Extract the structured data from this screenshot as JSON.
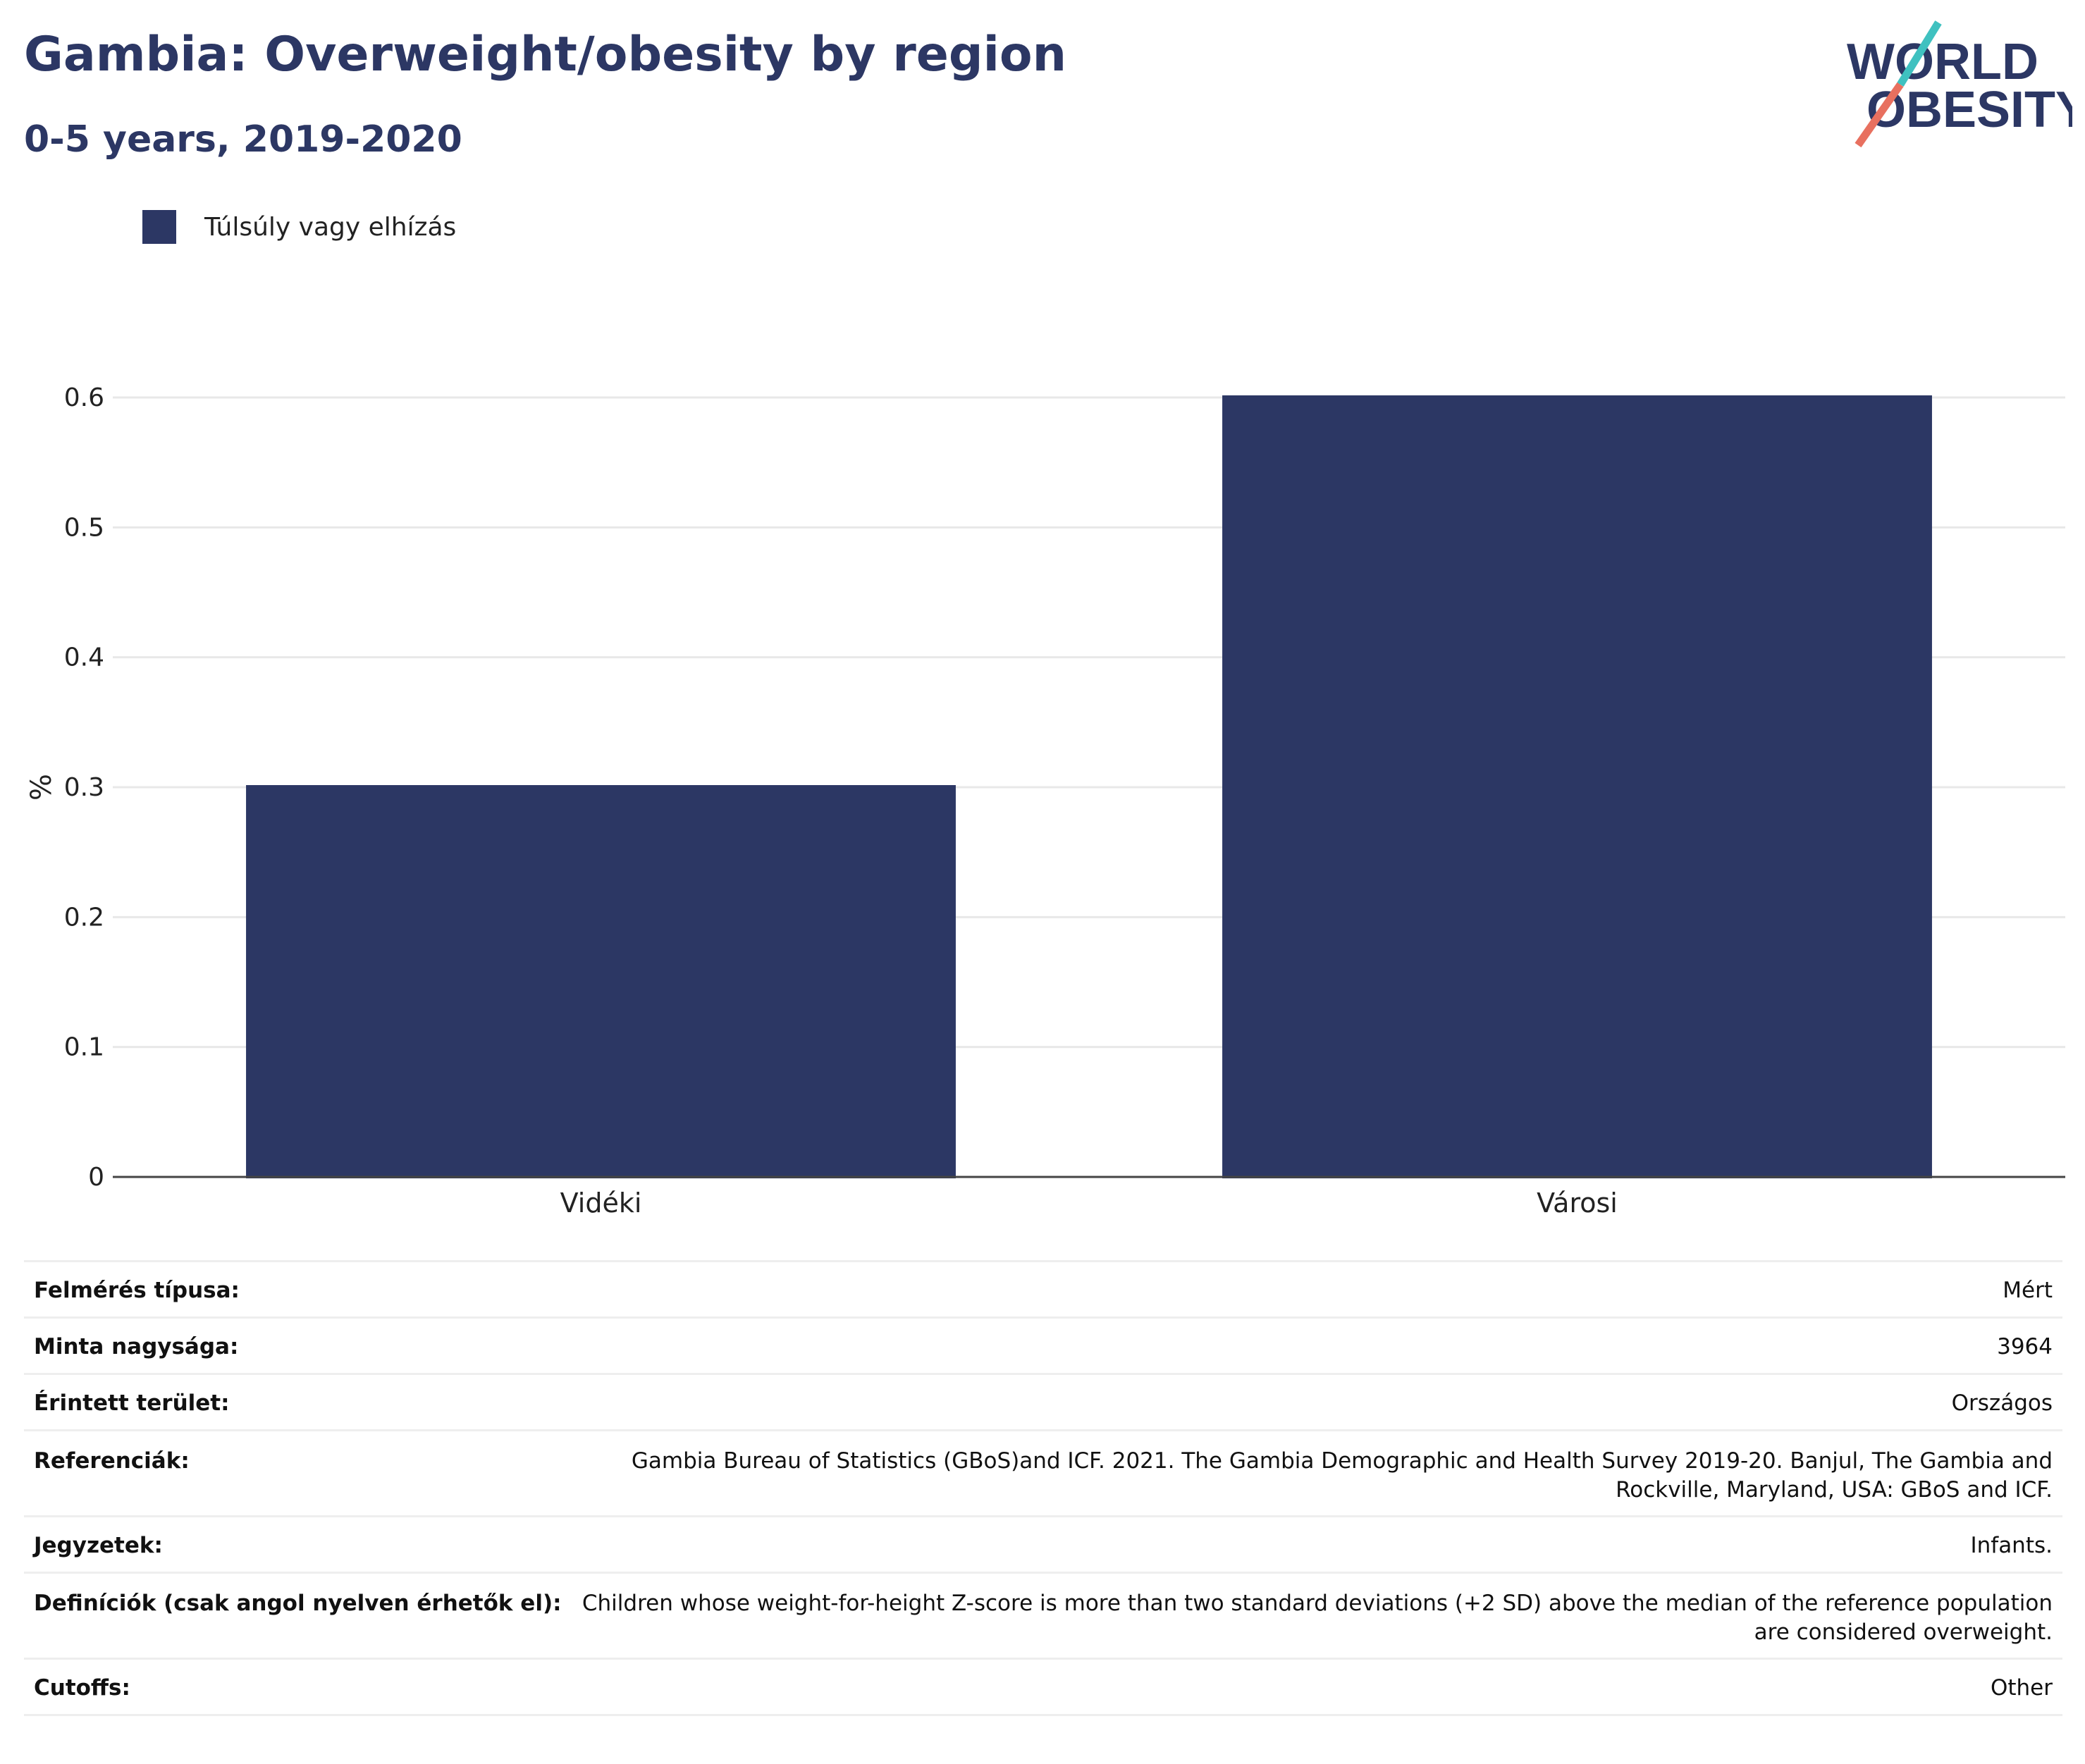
{
  "header": {
    "title": "Gambia: Overweight/obesity by region",
    "subtitle": "0-5 years, 2019-2020"
  },
  "logo": {
    "line1": "WORLD",
    "line2": "OBESITY"
  },
  "colors": {
    "bar": "#2c3764",
    "title": "#2c3764",
    "logo_teal": "#3fc1c0",
    "logo_coral": "#e8705f"
  },
  "chart_data": {
    "type": "bar",
    "categories": [
      "Vidéki",
      "Városi"
    ],
    "series": [
      {
        "name": "Túlsúly vagy elhízás",
        "values": [
          0.3,
          0.6
        ]
      }
    ],
    "ylabel": "%",
    "ylim": [
      0,
      0.6
    ],
    "yticks": [
      "0",
      "0.1",
      "0.2",
      "0.3",
      "0.4",
      "0.5",
      "0.6"
    ],
    "grid": true,
    "legend": "top-left"
  },
  "metadata": [
    {
      "key": "Felmérés típusa:",
      "value": "Mért"
    },
    {
      "key": "Minta nagysága:",
      "value": "3964"
    },
    {
      "key": "Érintett terület:",
      "value": "Országos"
    },
    {
      "key": "Referenciák:",
      "value": "Gambia Bureau of Statistics (GBoS)and ICF. 2021. The Gambia Demographic and Health Survey 2019-20. Banjul, The Gambia and Rockville, Maryland, USA: GBoS and ICF."
    },
    {
      "key": "Jegyzetek:",
      "value": "Infants."
    },
    {
      "key": "Definíciók (csak angol nyelven érhetők el):",
      "value": "Children whose weight-for-height Z-score is more than two standard deviations (+2 SD) above the median of the reference population are considered overweight."
    },
    {
      "key": "Cutoffs:",
      "value": "Other"
    }
  ]
}
